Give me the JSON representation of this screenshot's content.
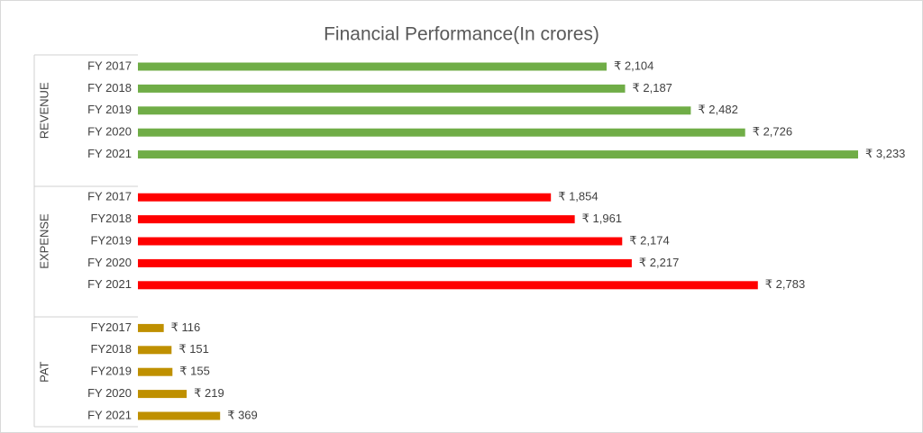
{
  "chart_data": {
    "type": "bar",
    "orientation": "horizontal",
    "title": "Financial Performance(In crores)",
    "groups": [
      {
        "name": "REVENUE",
        "color": "#70ad47",
        "categories": [
          "FY 2017",
          "FY 2018",
          "FY 2019",
          "FY 2020",
          "FY 2021"
        ],
        "values": [
          2104,
          2187,
          2482,
          2726,
          3233
        ],
        "value_labels": [
          "₹ 2,104",
          "₹ 2,187",
          "₹ 2,482",
          "₹ 2,726",
          "₹ 3,233"
        ]
      },
      {
        "name": "EXPENSE",
        "color": "#ff0000",
        "categories": [
          "FY 2017",
          "FY2018",
          "FY2019",
          "FY 2020",
          "FY 2021"
        ],
        "values": [
          1854,
          1961,
          2174,
          2217,
          2783
        ],
        "value_labels": [
          "₹ 1,854",
          "₹ 1,961",
          "₹ 2,174",
          "₹ 2,217",
          "₹ 2,783"
        ]
      },
      {
        "name": "PAT",
        "color": "#bf9000",
        "categories": [
          "FY2017",
          "FY2018",
          "FY2019",
          "FY 2020",
          "FY 2021"
        ],
        "values": [
          116,
          151,
          155,
          219,
          369
        ],
        "value_labels": [
          "₹ 116",
          "₹ 151",
          "₹ 155",
          "₹ 219",
          "₹ 369"
        ]
      }
    ]
  }
}
